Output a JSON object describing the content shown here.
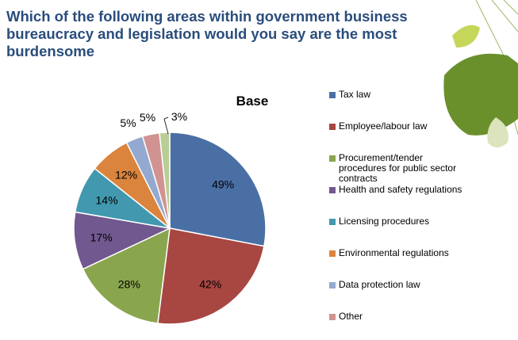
{
  "title": "Which of the following areas within government business bureaucracy and legislation would you say are the most burdensome",
  "chart_data": {
    "type": "pie",
    "title": "Base",
    "legend_position": "right",
    "slices": [
      {
        "label": "Tax law",
        "value": 49,
        "display": "49%",
        "color": "#4a6fa5"
      },
      {
        "label": "Employee/labour law",
        "value": 42,
        "display": "42%",
        "color": "#a84642"
      },
      {
        "label": "Procurement/tender procedures for public sector contracts",
        "value": 28,
        "display": "28%",
        "color": "#89a54e"
      },
      {
        "label": "Health and safety regulations",
        "value": 17,
        "display": "17%",
        "color": "#71588f"
      },
      {
        "label": "Licensing procedures",
        "value": 14,
        "display": "14%",
        "color": "#4198af"
      },
      {
        "label": "Environmental regulations",
        "value": 12,
        "display": "12%",
        "color": "#db843d"
      },
      {
        "label": "Data protection law",
        "value": 5,
        "display": "5%",
        "color": "#93a9cf"
      },
      {
        "label": "Other",
        "value": 5,
        "display": "5%",
        "color": "#d19392"
      },
      {
        "label": "",
        "value": 3,
        "display": "3%",
        "color": "#b9cd96"
      }
    ]
  }
}
